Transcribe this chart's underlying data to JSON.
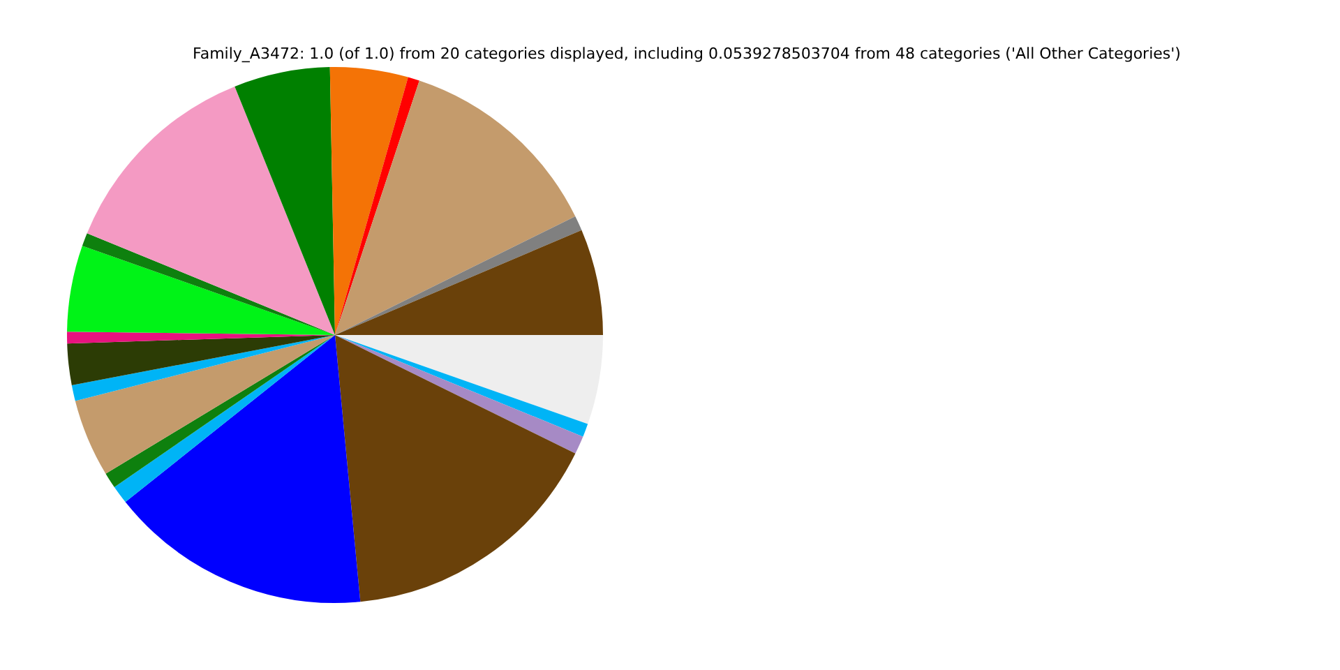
{
  "chart_data": {
    "type": "pie",
    "title": "Family_A3472: 1.0 (of 1.0) from 20 categories displayed, including 0.0539278503704 from 48 categories ('All Other Categories')",
    "categories": [
      null,
      null,
      null,
      null,
      null,
      null,
      null,
      null,
      null,
      null,
      null,
      null,
      null,
      null,
      null,
      null,
      null,
      null,
      null,
      null
    ],
    "values": [
      6.4,
      0.9,
      12.6,
      0.7,
      4.7,
      5.8,
      12.7,
      0.8,
      5.2,
      0.7,
      2.5,
      0.95,
      4.7,
      0.95,
      1.1,
      15.8,
      16.2,
      1.1,
      0.8,
      5.39
    ],
    "colors": [
      "#6a410a",
      "#808080",
      "#c49b6c",
      "#ff0000",
      "#f47306",
      "#008000",
      "#f49ac3",
      "#0e800e",
      "#00f317",
      "#e8127f",
      "#2c3c05",
      "#00b4f6",
      "#c49b6c",
      "#0e800e",
      "#00b4f6",
      "#0000ff",
      "#6a410a",
      "#a68ac5",
      "#00b4f6",
      "#eeeeee"
    ]
  }
}
